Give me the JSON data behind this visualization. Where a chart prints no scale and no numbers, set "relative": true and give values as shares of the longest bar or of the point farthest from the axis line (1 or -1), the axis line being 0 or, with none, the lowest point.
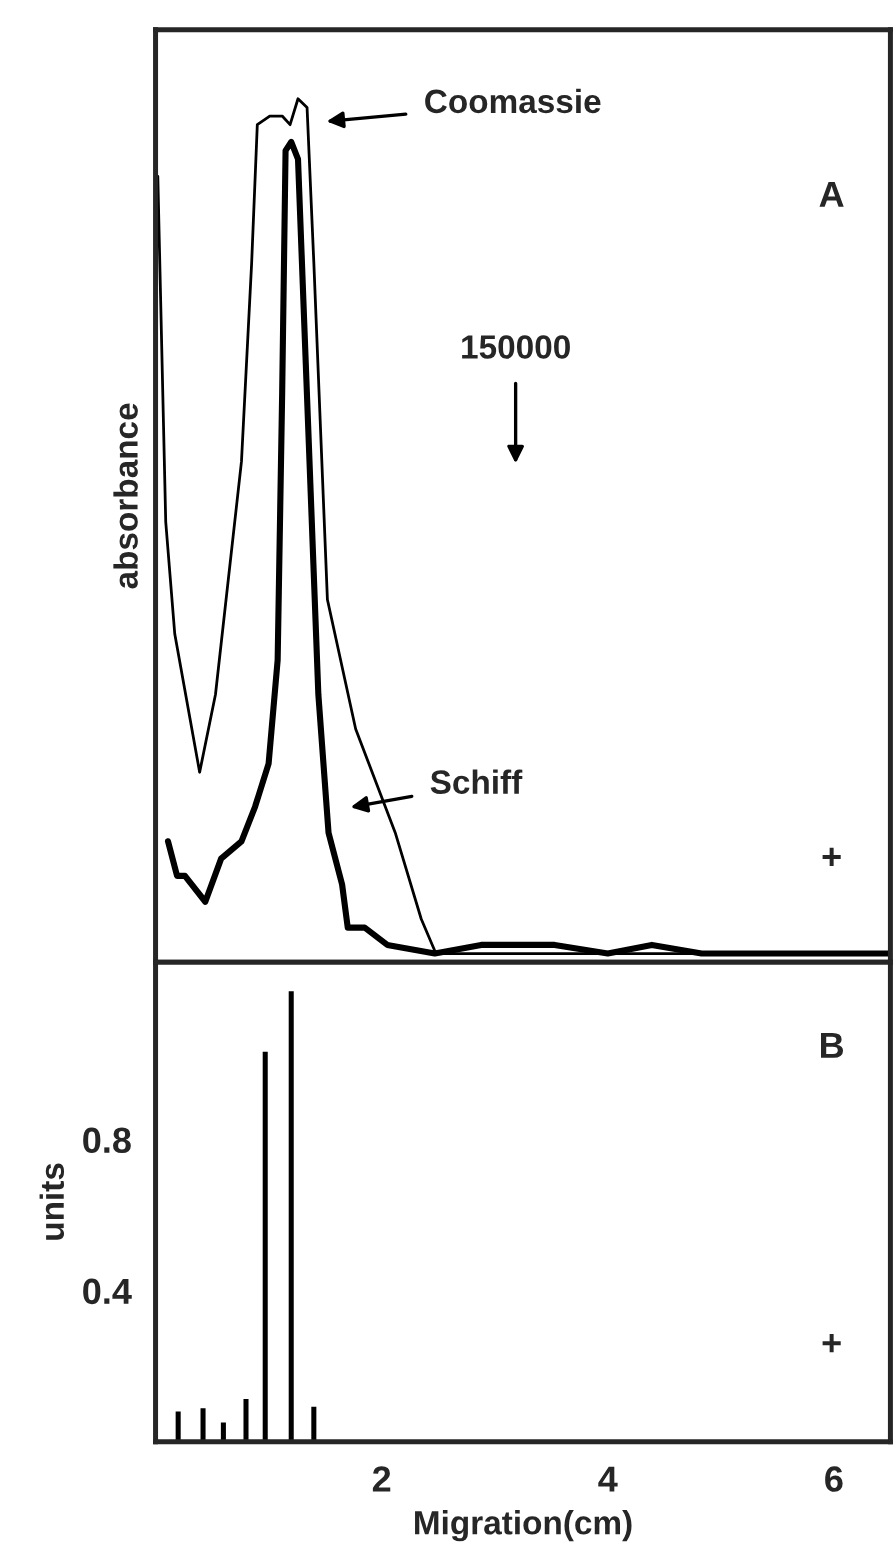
{
  "chart_data": [
    {
      "type": "line",
      "relative": true,
      "ylabel": "absorbance",
      "xlim": [
        0,
        6.5
      ],
      "grid": false,
      "legend": false,
      "series": [
        {
          "color": "#000000",
          "x": [
            0.02,
            0.09,
            0.17,
            0.39,
            0.53,
            0.76,
            0.85,
            0.9,
            1.01,
            1.12,
            1.19,
            1.26,
            1.34,
            1.4,
            1.52,
            1.77,
            2.12,
            2.35,
            2.48,
            2.88,
            3.95,
            5.0,
            6.5
          ],
          "values": [
            0.91,
            0.51,
            0.38,
            0.22,
            0.31,
            0.58,
            0.81,
            0.97,
            0.98,
            0.98,
            0.97,
            1.0,
            0.99,
            0.81,
            0.42,
            0.27,
            0.15,
            0.05,
            0.01,
            0.01,
            0.01,
            0.01,
            0.01
          ]
        },
        {
          "color": "#000000",
          "x": [
            0.11,
            0.19,
            0.26,
            0.44,
            0.58,
            0.76,
            0.88,
            1.0,
            1.08,
            1.12,
            1.15,
            1.2,
            1.26,
            1.35,
            1.44,
            1.53,
            1.65,
            1.7,
            1.85,
            2.05,
            2.47,
            2.88,
            3.53,
            4.0,
            4.39,
            4.83,
            5.72,
            6.48
          ],
          "values": [
            0.14,
            0.1,
            0.1,
            0.07,
            0.12,
            0.14,
            0.18,
            0.23,
            0.35,
            0.66,
            0.94,
            0.95,
            0.93,
            0.62,
            0.31,
            0.15,
            0.09,
            0.04,
            0.04,
            0.02,
            0.01,
            0.02,
            0.02,
            0.01,
            0.02,
            0.01,
            0.01,
            0.01
          ]
        }
      ],
      "annotations": [
        "A",
        "+",
        "Coomassie",
        "Schiff",
        "150000"
      ]
    },
    {
      "type": "bar",
      "xlabel": "Migration(cm)",
      "ylabel": "units",
      "xlim": [
        0,
        6.5
      ],
      "ylim": [
        0,
        1.27
      ],
      "xticks": [
        2,
        4,
        6
      ],
      "yticks": [
        0.4,
        0.8
      ],
      "grid": false,
      "legend": false,
      "x": [
        0.2,
        0.42,
        0.6,
        0.8,
        0.97,
        1.2,
        1.4
      ],
      "values": [
        0.077,
        0.086,
        0.048,
        0.11,
        1.03,
        1.19,
        0.09
      ],
      "color": "#000000",
      "annotations": [
        "B",
        "+"
      ]
    }
  ]
}
